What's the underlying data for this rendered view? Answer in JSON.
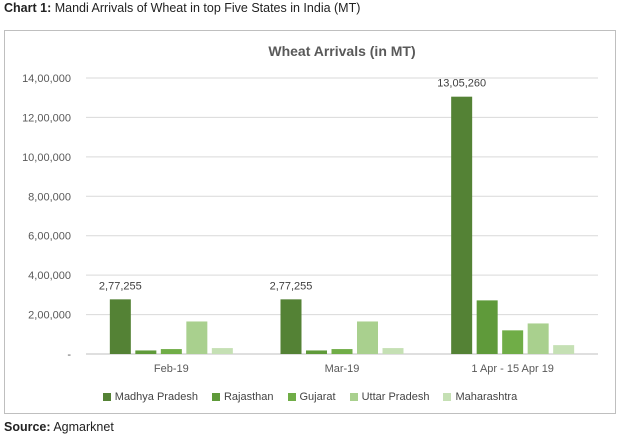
{
  "heading": {
    "label": "Chart 1:",
    "text": "Mandi Arrivals of Wheat in top Five States in India (MT)"
  },
  "source": {
    "label": "Source:",
    "text": "Agmarknet"
  },
  "chart_data": {
    "type": "bar",
    "title": "Wheat Arrivals (in MT)",
    "categories": [
      "Feb-19",
      "Mar-19",
      "1 Apr - 15 Apr 19"
    ],
    "y_ticks": [
      "-",
      "2,00,000",
      "4,00,000",
      "6,00,000",
      "8,00,000",
      "10,00,000",
      "12,00,000",
      "14,00,000"
    ],
    "ylim": [
      0,
      1400000
    ],
    "grid": true,
    "legend_position": "bottom",
    "series": [
      {
        "name": "Madhya Pradesh",
        "color": "#548235",
        "values": [
          277255,
          277255,
          1305260
        ],
        "labels": [
          "2,77,255",
          "2,77,255",
          "13,05,260"
        ]
      },
      {
        "name": "Rajasthan",
        "color": "#5f9a3a",
        "values": [
          18000,
          18000,
          272000
        ]
      },
      {
        "name": "Gujarat",
        "color": "#70ad47",
        "values": [
          25000,
          25000,
          120000
        ]
      },
      {
        "name": "Uttar Pradesh",
        "color": "#a9d08e",
        "values": [
          165000,
          165000,
          155000
        ]
      },
      {
        "name": "Maharashtra",
        "color": "#c5e0b4",
        "values": [
          30000,
          30000,
          45000
        ]
      }
    ]
  }
}
